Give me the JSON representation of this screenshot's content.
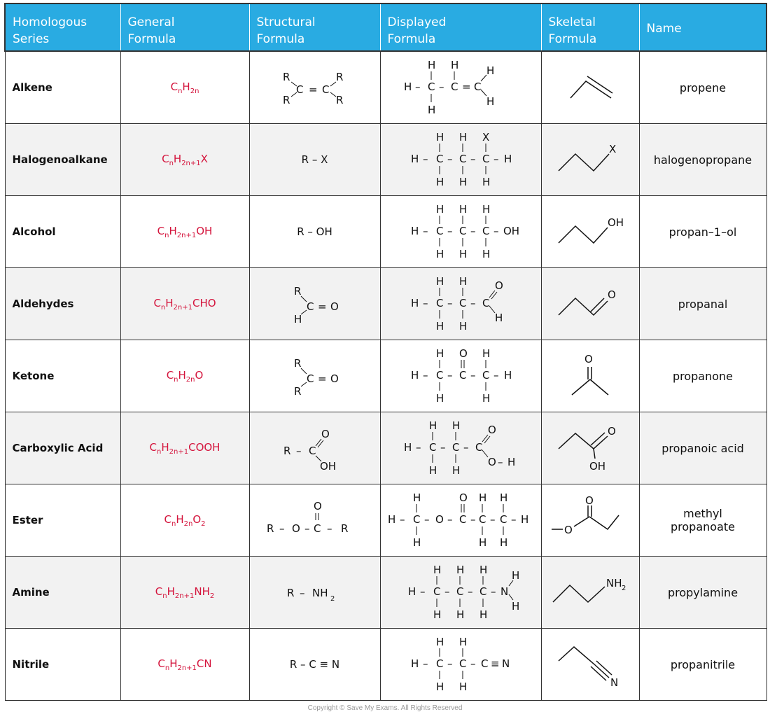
{
  "headers": [
    "Homologous\nSeries",
    "General\nFormula",
    "Structural\nFormula",
    "Displayed\nFormula",
    "Skeletal\nFormula",
    "Name"
  ],
  "rows": [
    {
      "series": "Alkene",
      "general": {
        "c": "C",
        "cs": "n",
        "h": "H",
        "hs": "2n",
        "rest": ""
      },
      "structural": "R2C=CR2",
      "name": "propene"
    },
    {
      "series": "Halogenoalkane",
      "general": {
        "c": "C",
        "cs": "n",
        "h": "H",
        "hs": "2n+1",
        "rest": "X"
      },
      "structural": "R – X",
      "name": "halogenopropane"
    },
    {
      "series": "Alcohol",
      "general": {
        "c": "C",
        "cs": "n",
        "h": "H",
        "hs": "2n+1",
        "rest": "OH"
      },
      "structural": "R – OH",
      "name": "propan–1–ol"
    },
    {
      "series": "Aldehydes",
      "general": {
        "c": "C",
        "cs": "n",
        "h": "H",
        "hs": "2n+1",
        "rest": "CHO"
      },
      "structural": "RHC=O",
      "name": "propanal"
    },
    {
      "series": "Ketone",
      "general": {
        "c": "C",
        "cs": "n",
        "h": "H",
        "hs": "2n",
        "rest": "O"
      },
      "structural": "R2C=O",
      "name": "propanone"
    },
    {
      "series": "Carboxylic Acid",
      "general": {
        "c": "C",
        "cs": "n",
        "h": "H",
        "hs": "2n+1",
        "rest": "COOH"
      },
      "structural": "RCOOH",
      "name": "propanoic acid"
    },
    {
      "series": "Ester",
      "general": {
        "c": "C",
        "cs": "n",
        "h": "H",
        "hs": "2n",
        "rest": "O",
        "rs": "2"
      },
      "structural": "R–O–C(=O)–R",
      "name": "methyl\npropanoate"
    },
    {
      "series": "Amine",
      "general": {
        "c": "C",
        "cs": "n",
        "h": "H",
        "hs": "2n+1",
        "rest": "NH",
        "rs": "2"
      },
      "structural": "R – NH2",
      "name": "propylamine"
    },
    {
      "series": "Nitrile",
      "general": {
        "c": "C",
        "cs": "n",
        "h": "H",
        "hs": "2n+1",
        "rest": "CN"
      },
      "structural": "R – C ≡ N",
      "name": "propanitrile"
    }
  ],
  "copyright": "Copyright © Save My Exams. All Rights Reserved"
}
